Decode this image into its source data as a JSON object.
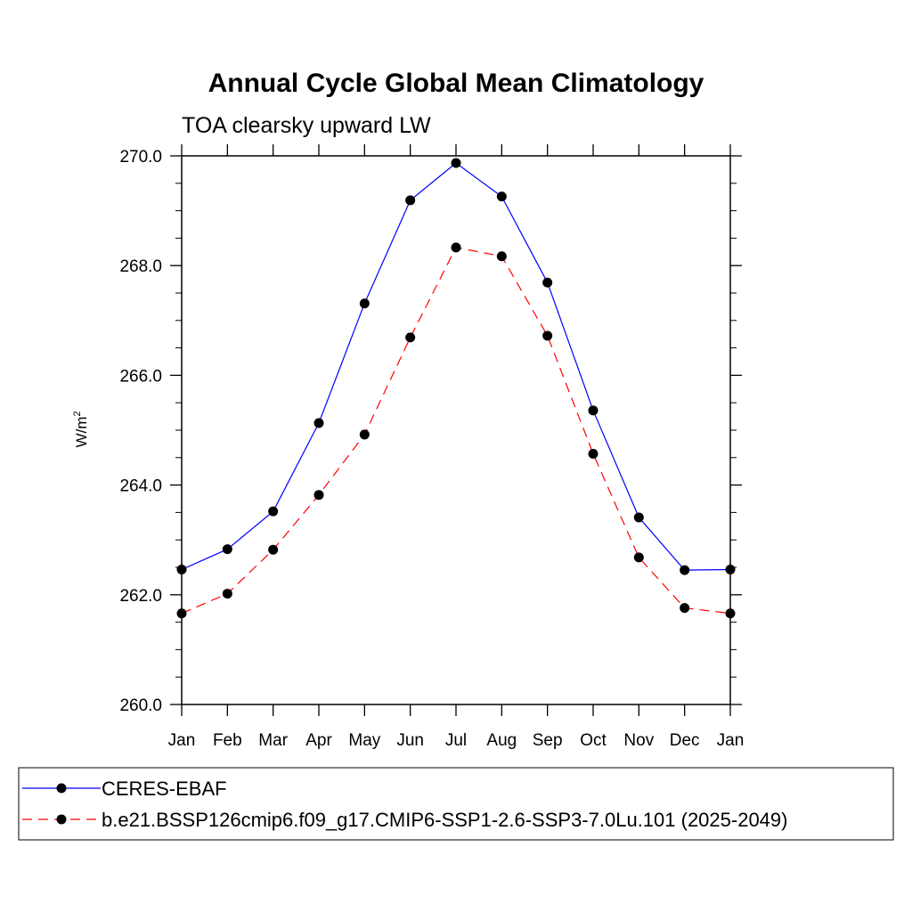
{
  "chart_data": {
    "type": "line",
    "title": "Annual Cycle Global Mean Climatology",
    "subtitle": "TOA clearsky upward LW",
    "ylabel": "W/m",
    "ylabel_sup": "2",
    "xlabel": "",
    "categories": [
      "Jan",
      "Feb",
      "Mar",
      "Apr",
      "May",
      "Jun",
      "Jul",
      "Aug",
      "Sep",
      "Oct",
      "Nov",
      "Dec",
      "Jan"
    ],
    "ylim": [
      260.0,
      270.0
    ],
    "yticks": [
      "260.0",
      "262.0",
      "264.0",
      "266.0",
      "268.0",
      "270.0"
    ],
    "grid": false,
    "legend_position": "bottom",
    "series": [
      {
        "name": "CERES-EBAF",
        "color": "#0000ff",
        "dash": "solid",
        "values": [
          262.46,
          262.83,
          263.52,
          265.13,
          267.31,
          269.19,
          269.87,
          269.26,
          267.69,
          265.36,
          263.41,
          262.45,
          262.46
        ]
      },
      {
        "name": "b.e21.BSSP126cmip6.f09_g17.CMIP6-SSP1-2.6-SSP3-7.0Lu.101 (2025-2049)",
        "color": "#ff0000",
        "dash": "dashed",
        "values": [
          261.66,
          262.02,
          262.82,
          263.82,
          264.92,
          266.69,
          268.33,
          268.17,
          266.72,
          264.57,
          262.68,
          261.76,
          261.66
        ]
      }
    ]
  }
}
